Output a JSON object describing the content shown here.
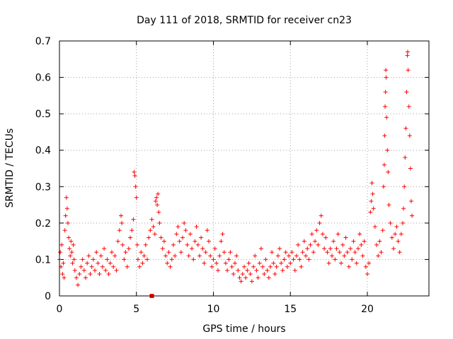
{
  "chart_data": {
    "type": "scatter",
    "title": "Day 111 of 2018, SRMTID for receiver cn23",
    "xlabel": "GPS time / hours",
    "ylabel": "SRMTID / TECUs",
    "xlim": [
      0,
      24
    ],
    "ylim": [
      0,
      0.7
    ],
    "xticks": [
      0,
      5,
      10,
      15,
      20
    ],
    "yticks": [
      0,
      0.1,
      0.2,
      0.3,
      0.4,
      0.5,
      0.6,
      0.7
    ],
    "xtick_labels": [
      "0",
      "5",
      "10",
      "15",
      "20"
    ],
    "ytick_labels": [
      "0",
      "0.1",
      "0.2",
      "0.3",
      "0.4",
      "0.5",
      "0.6",
      "0.7"
    ],
    "grid": true,
    "marker": "+",
    "marker_color": "#ff0000",
    "grid_color": "#a0a0a0",
    "series": [
      {
        "name": "cn23",
        "points": [
          [
            0.0,
            0.1
          ],
          [
            0.05,
            0.12
          ],
          [
            0.1,
            0.08
          ],
          [
            0.15,
            0.14
          ],
          [
            0.2,
            0.06
          ],
          [
            0.25,
            0.09
          ],
          [
            0.3,
            0.05
          ],
          [
            0.35,
            0.18
          ],
          [
            0.4,
            0.22
          ],
          [
            0.45,
            0.27
          ],
          [
            0.5,
            0.24
          ],
          [
            0.55,
            0.2
          ],
          [
            0.6,
            0.16
          ],
          [
            0.65,
            0.13
          ],
          [
            0.7,
            0.11
          ],
          [
            0.75,
            0.15
          ],
          [
            0.8,
            0.12
          ],
          [
            0.85,
            0.09
          ],
          [
            0.9,
            0.14
          ],
          [
            0.95,
            0.1
          ],
          [
            1.0,
            0.07
          ],
          [
            1.1,
            0.05
          ],
          [
            1.2,
            0.03
          ],
          [
            1.3,
            0.06
          ],
          [
            1.4,
            0.08
          ],
          [
            1.5,
            0.1
          ],
          [
            1.6,
            0.07
          ],
          [
            1.7,
            0.05
          ],
          [
            1.8,
            0.09
          ],
          [
            1.9,
            0.11
          ],
          [
            2.0,
            0.06
          ],
          [
            2.1,
            0.08
          ],
          [
            2.2,
            0.1
          ],
          [
            2.3,
            0.07
          ],
          [
            2.4,
            0.12
          ],
          [
            2.5,
            0.09
          ],
          [
            2.6,
            0.06
          ],
          [
            2.7,
            0.11
          ],
          [
            2.8,
            0.08
          ],
          [
            2.9,
            0.13
          ],
          [
            3.0,
            0.07
          ],
          [
            3.1,
            0.1
          ],
          [
            3.2,
            0.06
          ],
          [
            3.3,
            0.09
          ],
          [
            3.4,
            0.12
          ],
          [
            3.5,
            0.08
          ],
          [
            3.6,
            0.11
          ],
          [
            3.7,
            0.07
          ],
          [
            3.8,
            0.15
          ],
          [
            3.9,
            0.18
          ],
          [
            4.0,
            0.22
          ],
          [
            4.05,
            0.2
          ],
          [
            4.1,
            0.14
          ],
          [
            4.2,
            0.1
          ],
          [
            4.3,
            0.12
          ],
          [
            4.4,
            0.08
          ],
          [
            4.5,
            0.13
          ],
          [
            4.6,
            0.16
          ],
          [
            4.7,
            0.18
          ],
          [
            4.8,
            0.21
          ],
          [
            4.85,
            0.34
          ],
          [
            4.9,
            0.33
          ],
          [
            4.95,
            0.3
          ],
          [
            5.0,
            0.27
          ],
          [
            5.05,
            0.14
          ],
          [
            5.1,
            0.1
          ],
          [
            5.2,
            0.08
          ],
          [
            5.3,
            0.12
          ],
          [
            5.4,
            0.09
          ],
          [
            5.5,
            0.11
          ],
          [
            5.6,
            0.14
          ],
          [
            5.7,
            0.1
          ],
          [
            5.8,
            0.16
          ],
          [
            5.9,
            0.18
          ],
          [
            6.0,
            0.21
          ],
          [
            6.1,
            0.19
          ],
          [
            6.2,
            0.17
          ],
          [
            6.25,
            0.26
          ],
          [
            6.3,
            0.27
          ],
          [
            6.35,
            0.25
          ],
          [
            6.4,
            0.28
          ],
          [
            6.45,
            0.23
          ],
          [
            6.5,
            0.2
          ],
          [
            6.6,
            0.16
          ],
          [
            6.7,
            0.13
          ],
          [
            6.8,
            0.15
          ],
          [
            6.9,
            0.11
          ],
          [
            7.0,
            0.09
          ],
          [
            7.1,
            0.12
          ],
          [
            7.2,
            0.08
          ],
          [
            7.3,
            0.1
          ],
          [
            7.4,
            0.14
          ],
          [
            7.5,
            0.11
          ],
          [
            7.6,
            0.17
          ],
          [
            7.7,
            0.19
          ],
          [
            7.8,
            0.15
          ],
          [
            7.9,
            0.12
          ],
          [
            8.0,
            0.16
          ],
          [
            8.1,
            0.2
          ],
          [
            8.2,
            0.18
          ],
          [
            8.3,
            0.14
          ],
          [
            8.4,
            0.11
          ],
          [
            8.5,
            0.17
          ],
          [
            8.6,
            0.13
          ],
          [
            8.7,
            0.1
          ],
          [
            8.8,
            0.15
          ],
          [
            8.9,
            0.19
          ],
          [
            9.0,
            0.14
          ],
          [
            9.1,
            0.11
          ],
          [
            9.2,
            0.16
          ],
          [
            9.3,
            0.13
          ],
          [
            9.4,
            0.09
          ],
          [
            9.5,
            0.12
          ],
          [
            9.6,
            0.18
          ],
          [
            9.7,
            0.15
          ],
          [
            9.8,
            0.11
          ],
          [
            9.9,
            0.08
          ],
          [
            10.0,
            0.1
          ],
          [
            10.1,
            0.13
          ],
          [
            10.2,
            0.09
          ],
          [
            10.3,
            0.07
          ],
          [
            10.4,
            0.11
          ],
          [
            10.5,
            0.15
          ],
          [
            10.6,
            0.17
          ],
          [
            10.7,
            0.12
          ],
          [
            10.8,
            0.09
          ],
          [
            10.9,
            0.07
          ],
          [
            11.0,
            0.1
          ],
          [
            11.1,
            0.12
          ],
          [
            11.2,
            0.08
          ],
          [
            11.3,
            0.06
          ],
          [
            11.4,
            0.09
          ],
          [
            11.5,
            0.11
          ],
          [
            11.6,
            0.07
          ],
          [
            11.7,
            0.05
          ],
          [
            11.8,
            0.04
          ],
          [
            11.9,
            0.06
          ],
          [
            12.0,
            0.08
          ],
          [
            12.1,
            0.05
          ],
          [
            12.2,
            0.07
          ],
          [
            12.3,
            0.09
          ],
          [
            12.4,
            0.06
          ],
          [
            12.5,
            0.04
          ],
          [
            12.6,
            0.08
          ],
          [
            12.7,
            0.11
          ],
          [
            12.8,
            0.07
          ],
          [
            12.9,
            0.05
          ],
          [
            13.0,
            0.09
          ],
          [
            13.1,
            0.13
          ],
          [
            13.2,
            0.08
          ],
          [
            13.3,
            0.06
          ],
          [
            13.4,
            0.1
          ],
          [
            13.5,
            0.07
          ],
          [
            13.6,
            0.05
          ],
          [
            13.7,
            0.08
          ],
          [
            13.8,
            0.12
          ],
          [
            13.9,
            0.09
          ],
          [
            14.0,
            0.06
          ],
          [
            14.1,
            0.08
          ],
          [
            14.2,
            0.11
          ],
          [
            14.3,
            0.13
          ],
          [
            14.4,
            0.09
          ],
          [
            14.5,
            0.07
          ],
          [
            14.6,
            0.1
          ],
          [
            14.7,
            0.12
          ],
          [
            14.8,
            0.08
          ],
          [
            14.9,
            0.11
          ],
          [
            15.0,
            0.09
          ],
          [
            15.1,
            0.12
          ],
          [
            15.2,
            0.1
          ],
          [
            15.3,
            0.07
          ],
          [
            15.4,
            0.11
          ],
          [
            15.5,
            0.14
          ],
          [
            15.6,
            0.1
          ],
          [
            15.7,
            0.08
          ],
          [
            15.8,
            0.12
          ],
          [
            15.9,
            0.15
          ],
          [
            16.0,
            0.11
          ],
          [
            16.1,
            0.13
          ],
          [
            16.2,
            0.1
          ],
          [
            16.3,
            0.14
          ],
          [
            16.4,
            0.17
          ],
          [
            16.5,
            0.12
          ],
          [
            16.6,
            0.15
          ],
          [
            16.7,
            0.18
          ],
          [
            16.8,
            0.14
          ],
          [
            16.9,
            0.2
          ],
          [
            17.0,
            0.22
          ],
          [
            17.1,
            0.17
          ],
          [
            17.2,
            0.13
          ],
          [
            17.3,
            0.16
          ],
          [
            17.4,
            0.12
          ],
          [
            17.5,
            0.09
          ],
          [
            17.6,
            0.13
          ],
          [
            17.7,
            0.11
          ],
          [
            17.8,
            0.15
          ],
          [
            17.9,
            0.1
          ],
          [
            18.0,
            0.13
          ],
          [
            18.1,
            0.17
          ],
          [
            18.2,
            0.12
          ],
          [
            18.3,
            0.09
          ],
          [
            18.4,
            0.14
          ],
          [
            18.5,
            0.11
          ],
          [
            18.6,
            0.16
          ],
          [
            18.7,
            0.12
          ],
          [
            18.8,
            0.08
          ],
          [
            18.9,
            0.13
          ],
          [
            19.0,
            0.1
          ],
          [
            19.1,
            0.15
          ],
          [
            19.2,
            0.12
          ],
          [
            19.3,
            0.09
          ],
          [
            19.4,
            0.13
          ],
          [
            19.5,
            0.17
          ],
          [
            19.6,
            0.14
          ],
          [
            19.7,
            0.11
          ],
          [
            19.8,
            0.15
          ],
          [
            19.9,
            0.08
          ],
          [
            20.0,
            0.06
          ],
          [
            20.1,
            0.09
          ],
          [
            20.2,
            0.23
          ],
          [
            20.25,
            0.26
          ],
          [
            20.3,
            0.31
          ],
          [
            20.35,
            0.28
          ],
          [
            20.4,
            0.24
          ],
          [
            20.5,
            0.19
          ],
          [
            20.6,
            0.14
          ],
          [
            20.7,
            0.11
          ],
          [
            20.8,
            0.15
          ],
          [
            20.9,
            0.12
          ],
          [
            21.0,
            0.18
          ],
          [
            21.05,
            0.3
          ],
          [
            21.1,
            0.36
          ],
          [
            21.12,
            0.44
          ],
          [
            21.15,
            0.52
          ],
          [
            21.18,
            0.56
          ],
          [
            21.2,
            0.62
          ],
          [
            21.22,
            0.6
          ],
          [
            21.25,
            0.49
          ],
          [
            21.3,
            0.4
          ],
          [
            21.35,
            0.34
          ],
          [
            21.4,
            0.25
          ],
          [
            21.5,
            0.2
          ],
          [
            21.6,
            0.16
          ],
          [
            21.7,
            0.13
          ],
          [
            21.8,
            0.17
          ],
          [
            21.9,
            0.19
          ],
          [
            22.0,
            0.15
          ],
          [
            22.1,
            0.12
          ],
          [
            22.2,
            0.17
          ],
          [
            22.3,
            0.2
          ],
          [
            22.35,
            0.24
          ],
          [
            22.4,
            0.3
          ],
          [
            22.45,
            0.38
          ],
          [
            22.5,
            0.46
          ],
          [
            22.55,
            0.56
          ],
          [
            22.6,
            0.66
          ],
          [
            22.62,
            0.67
          ],
          [
            22.65,
            0.62
          ],
          [
            22.7,
            0.52
          ],
          [
            22.75,
            0.44
          ],
          [
            22.8,
            0.35
          ],
          [
            22.85,
            0.26
          ],
          [
            22.9,
            0.22
          ]
        ]
      }
    ],
    "extra_marker": {
      "x": 6.0,
      "y": 0.0,
      "shape": "square"
    }
  }
}
